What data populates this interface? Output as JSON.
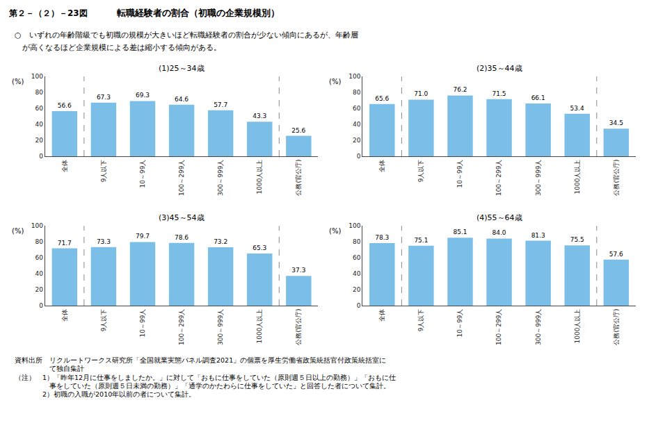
{
  "title": [
    "第２－（２）－23図",
    "転職経験者の割合（初職の企業規模別）"
  ],
  "subtitle": [
    "○　いずれの年齢階級でも初職の規模が大きいほど転職経験者の割合が少ない傾向にあるが、年齢層",
    "　が高くなるほど企業規模による差は縮小する傾向がある。"
  ],
  "annotations": [
    "資料出所　リクルートワークス研究所「全国就業実態パネル調査2021」の個票を厚生労働省政策統括官付政策統括室に",
    "　　　　　て独自集計",
    "（注）　1）「昨年12月に仕事をしましたか。」に対して「おもに仕事をしていた（原則週５日以上の勤務）」「おもに仕",
    "　　　　　事をしていた（原則週５日未満の勤務）」「通学のかたわらに仕事をしていた」と回答した者について集計。",
    "　　　　2）初職の入職が2010年以前の者について集計。"
  ],
  "chart_data": [
    {
      "type": "bar",
      "title": "(1)25～34歳",
      "categories": [
        "全体",
        "9人以下",
        "10～99人",
        "100～299人",
        "300～999人",
        "1000人以上",
        "公務(官公庁)"
      ],
      "values": [
        56.6,
        67.3,
        69.3,
        64.6,
        57.7,
        43.3,
        25.6
      ],
      "value_labels": [
        "56.6",
        "67.3",
        "69.3",
        "64.6",
        "57.7",
        "43.3",
        "25.6"
      ],
      "color": "#7bbfe8",
      "ylabel": "(%)",
      "ylim": [
        0,
        100
      ],
      "yticks": [
        0,
        20,
        40,
        60,
        80,
        100
      ],
      "grid": false,
      "data_labels": true
    },
    {
      "type": "bar",
      "title": "(2)35～44歳",
      "categories": [
        "全体",
        "9人以下",
        "10～99人",
        "100～299人",
        "300～999人",
        "1000人以上",
        "公務(官公庁)"
      ],
      "values": [
        65.6,
        71.0,
        76.2,
        71.5,
        66.1,
        53.4,
        34.5
      ],
      "value_labels": [
        "65.6",
        "71.0",
        "76.2",
        "71.5",
        "66.1",
        "53.4",
        "34.5"
      ],
      "color": "#7bbfe8",
      "ylabel": "(%)",
      "ylim": [
        0,
        100
      ],
      "yticks": [
        0,
        20,
        40,
        60,
        80,
        100
      ],
      "grid": false,
      "data_labels": true
    },
    {
      "type": "bar",
      "title": "(3)45～54歳",
      "categories": [
        "全体",
        "9人以下",
        "10～99人",
        "100～299人",
        "300～999人",
        "1000人以上",
        "公務(官公庁)"
      ],
      "values": [
        71.7,
        73.3,
        79.7,
        78.6,
        73.2,
        65.3,
        37.3
      ],
      "value_labels": [
        "71.7",
        "73.3",
        "79.7",
        "78.6",
        "73.2",
        "65.3",
        "37.3"
      ],
      "color": "#7bbfe8",
      "ylabel": "(%)",
      "ylim": [
        0,
        100
      ],
      "yticks": [
        0,
        20,
        40,
        60,
        80,
        100
      ],
      "grid": false,
      "data_labels": true
    },
    {
      "type": "bar",
      "title": "(4)55～64歳",
      "categories": [
        "全体",
        "9人以下",
        "10～99人",
        "100～299人",
        "300～999人",
        "1000人以上",
        "公務(官公庁)"
      ],
      "values": [
        78.3,
        75.1,
        85.1,
        84.0,
        81.3,
        75.5,
        57.6
      ],
      "value_labels": [
        "78.3",
        "75.1",
        "85.1",
        "84.0",
        "81.3",
        "75.5",
        "57.6"
      ],
      "color": "#7bbfe8",
      "ylabel": "(%)",
      "ylim": [
        0,
        100
      ],
      "yticks": [
        0,
        20,
        40,
        60,
        80,
        100
      ],
      "grid": false,
      "data_labels": true
    }
  ]
}
